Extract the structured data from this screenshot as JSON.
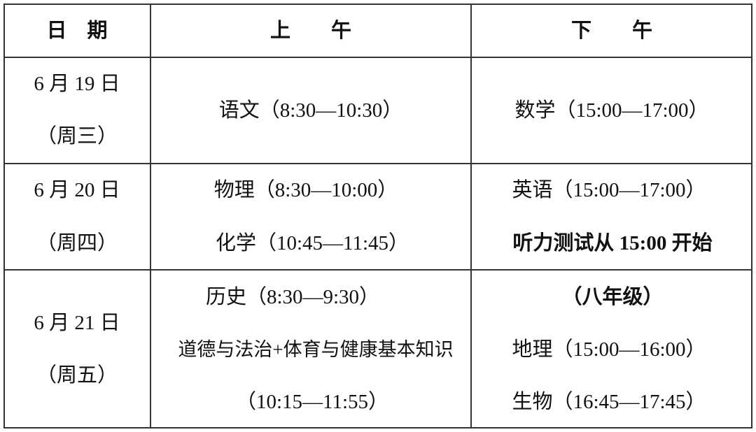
{
  "header": {
    "date": "日　期",
    "morning": "上　　午",
    "afternoon": "下　　午"
  },
  "rows": [
    {
      "date": "6 月 19 日",
      "weekday": "（周三）",
      "morning": [
        "语文（8:30—10:30）"
      ],
      "afternoon": [
        "数学（15:00—17:00）"
      ]
    },
    {
      "date": "6 月 20 日",
      "weekday": "（周四）",
      "morning": [
        "物理（8:30—10:00）",
        "化学（10:45—11:45）"
      ],
      "afternoon": [
        "英语（15:00—17:00）",
        "听力测试从 15:00 开始"
      ]
    },
    {
      "date": "6 月 21 日",
      "weekday": "（周五）",
      "morning": [
        "历史（8:30—9:30）",
        "道德与法治+体育与健康基本知识",
        "（10:15—11:55）"
      ],
      "afternoon": [
        "（八年级）",
        "地理（15:00—16:00）",
        "生物（16:45—17:45）"
      ]
    }
  ]
}
